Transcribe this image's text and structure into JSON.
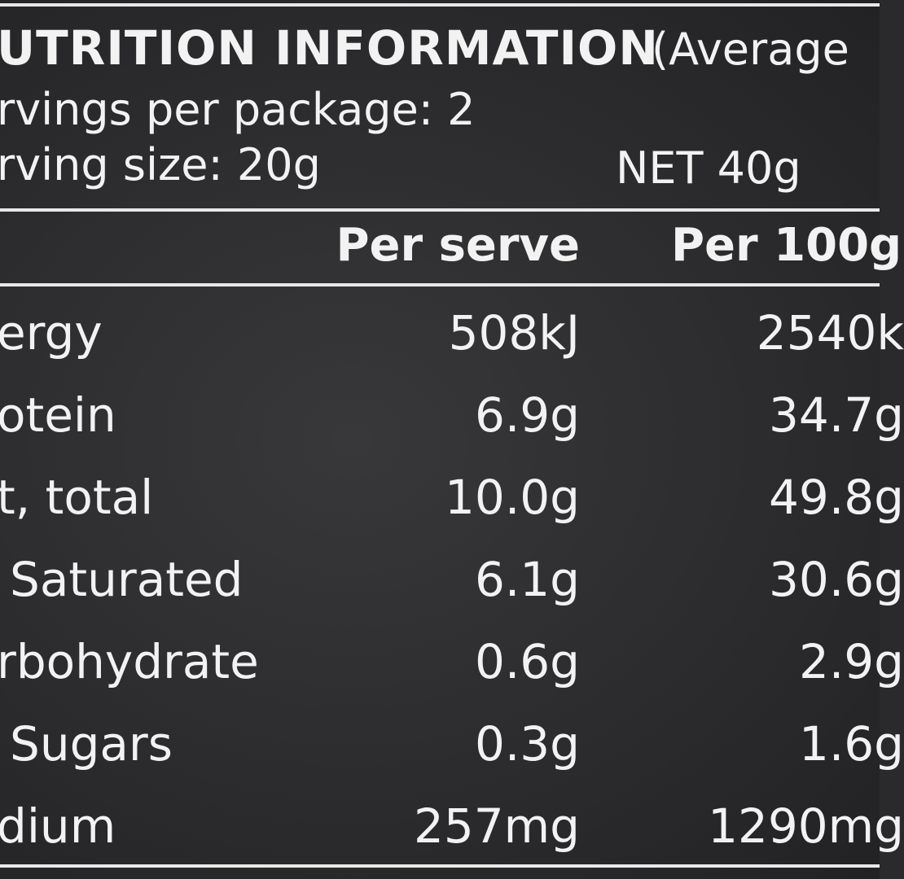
{
  "header": {
    "title": "UTRITION INFORMATION",
    "title_suffix": "(Average",
    "servings": "rvings per package: 2",
    "serving_size": "rving size: 20g",
    "net": "NET 40g"
  },
  "table": {
    "columns": [
      "Per serve",
      "Per 100g"
    ],
    "rows": [
      [
        "ergy",
        "508kJ",
        "2540k"
      ],
      [
        "otein",
        "6.9g",
        "34.7g"
      ],
      [
        "t, total",
        "10.0g",
        "49.8g"
      ],
      [
        "Saturated",
        "6.1g",
        "30.6g"
      ],
      [
        "rbohydrate",
        "0.6g",
        "2.9g"
      ],
      [
        "Sugars",
        "0.3g",
        "1.6g"
      ],
      [
        "dium",
        "257mg",
        "1290mg"
      ]
    ]
  }
}
